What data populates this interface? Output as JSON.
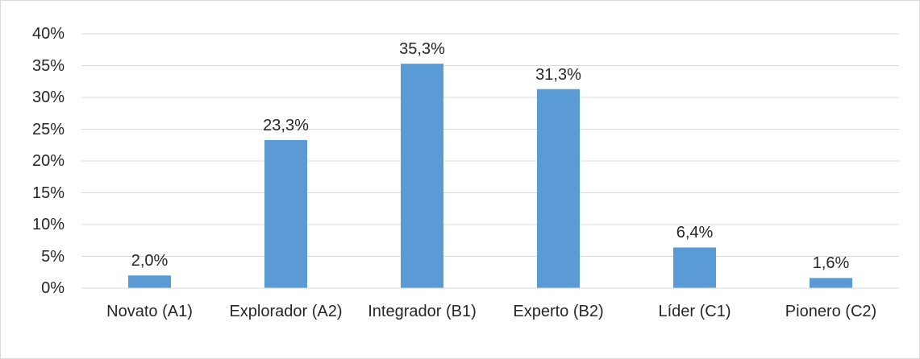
{
  "chart_data": {
    "type": "bar",
    "categories": [
      "Novato (A1)",
      "Explorador (A2)",
      "Integrador (B1)",
      "Experto (B2)",
      "Líder (C1)",
      "Pionero (C2)"
    ],
    "values": [
      2.0,
      23.3,
      35.3,
      31.3,
      6.4,
      1.6
    ],
    "value_labels": [
      "2,0%",
      "23,3%",
      "35,3%",
      "31,3%",
      "6,4%",
      "1,6%"
    ],
    "color": "#5b9bd5",
    "ylim": [
      0,
      40
    ],
    "yticks": [
      {
        "value": 0,
        "label": "0%"
      },
      {
        "value": 5,
        "label": "5%"
      },
      {
        "value": 10,
        "label": "10%"
      },
      {
        "value": 15,
        "label": "15%"
      },
      {
        "value": 20,
        "label": "20%"
      },
      {
        "value": 25,
        "label": "25%"
      },
      {
        "value": 30,
        "label": "30%"
      },
      {
        "value": 35,
        "label": "35%"
      },
      {
        "value": 40,
        "label": "40%"
      }
    ],
    "grid": true
  }
}
